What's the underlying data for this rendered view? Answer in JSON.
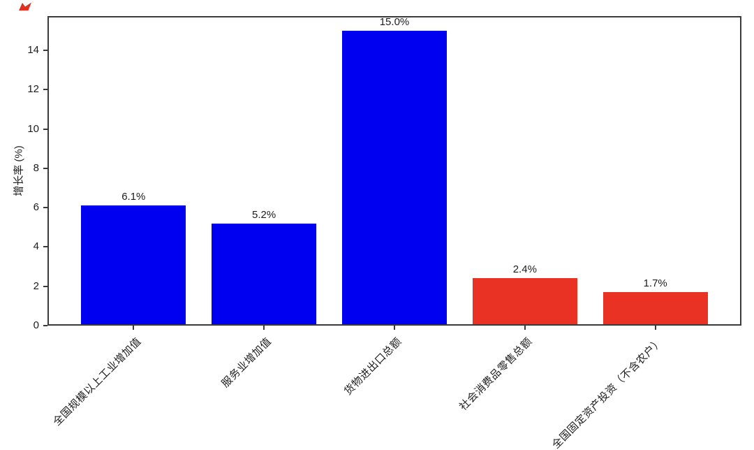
{
  "chart_data": {
    "type": "bar",
    "categories": [
      "全国规模以上工业增加值",
      "服务业增加值",
      "货物进出口总额",
      "社会消费品零售总额",
      "全国固定资产投资（不含农户）"
    ],
    "values": [
      6.1,
      5.2,
      15.0,
      2.4,
      1.7
    ],
    "bar_labels": [
      "6.1%",
      "5.2%",
      "15.0%",
      "2.4%",
      "1.7%"
    ],
    "bar_colors": [
      "#0000f0",
      "#0000f0",
      "#0000f0",
      "#e93224",
      "#e93224"
    ],
    "title": "",
    "xlabel": "",
    "ylabel": "增长率 (%)",
    "yticks": [
      "0",
      "2",
      "4",
      "6",
      "8",
      "10",
      "12",
      "14"
    ],
    "ylim": [
      0,
      15.75
    ],
    "bar_width": 0.8,
    "grid": false,
    "legend": "none",
    "x_tick_rotation_deg": 45
  },
  "colors": {
    "bar_blue": "#0000f0",
    "bar_red": "#e93224",
    "axis": "#3a3a3a",
    "text": "#1d1d1d",
    "background": "#ffffff",
    "corner_mark": "#e03020"
  }
}
